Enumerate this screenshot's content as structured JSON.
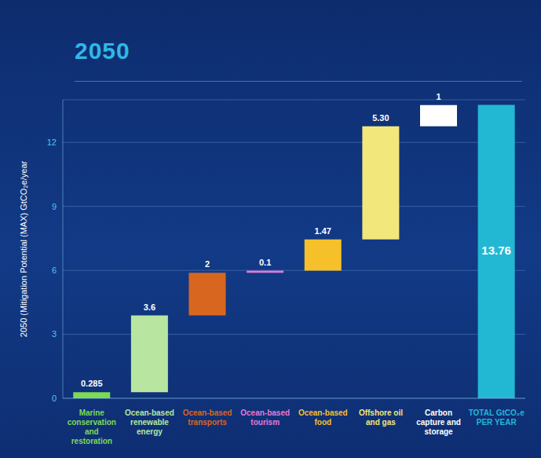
{
  "chart_data": {
    "type": "waterfall",
    "title": "2050",
    "y_label": "2050 (Mitigation Potential (MAX) GtCO₂e/year",
    "categories": [
      "Marine conservation and restoration",
      "Ocean-based renewable energy",
      "Ocean-based transports",
      "Ocean-based tourism",
      "Ocean-based food",
      "Offshore oil and gas",
      "Carbon capture and storage",
      "TOTAL GtCO₂e PER YEAR"
    ],
    "values": [
      0.285,
      3.6,
      2,
      0.1,
      1.47,
      5.3,
      1,
      13.76
    ],
    "value_labels": [
      "0.285",
      "3.6",
      "2",
      "0.1",
      "1.47",
      "5.30",
      "1",
      "13.76"
    ],
    "colors": [
      "#7ed957",
      "#b8e6a0",
      "#d9661f",
      "#e07ad8",
      "#f5c02a",
      "#f2e77a",
      "#ffffff",
      "#22b8d4"
    ],
    "ylim": [
      0,
      14
    ],
    "yticks": [
      0,
      3,
      6,
      9,
      12
    ],
    "grid": true,
    "data_labels": true
  }
}
